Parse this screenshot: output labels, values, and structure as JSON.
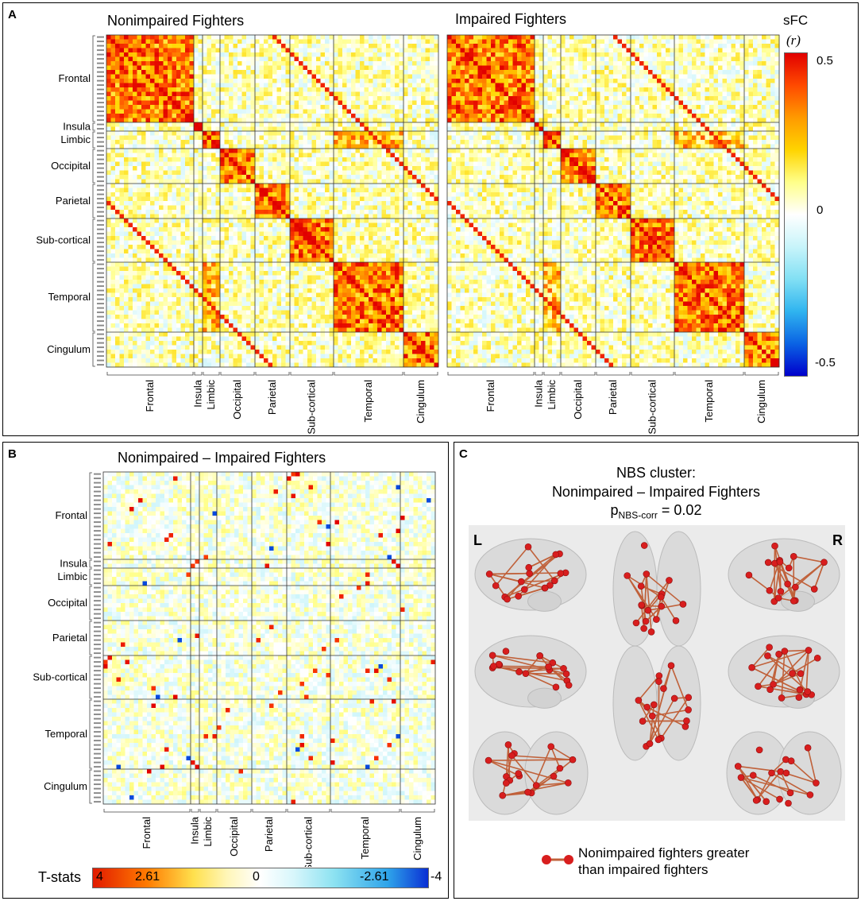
{
  "panels": {
    "a": {
      "letter": "A",
      "title_left": "Nonimpaired Fighters",
      "title_right": "Impaired Fighters"
    },
    "b": {
      "letter": "B",
      "title": "Nonimpaired – Impaired Fighters"
    },
    "c": {
      "letter": "C",
      "title_line1": "NBS cluster:",
      "title_line2": "Nonimpaired – Impaired Fighters",
      "p_label": "p",
      "p_sub": "NBS-corr",
      "p_value": "= 0.02",
      "left_label": "L",
      "right_label": "R",
      "legend_line1": "Nonimpaired fighters greater",
      "legend_line2": "than impaired fighters"
    }
  },
  "colorbar_a": {
    "title": "sFC",
    "unit": "(r)",
    "ticks": [
      "0.5",
      "0",
      "-0.5"
    ]
  },
  "colorbar_b": {
    "label": "T-stats",
    "ticks": [
      "4",
      "2.61",
      "0",
      "-2.61",
      "-4"
    ]
  },
  "regions": [
    "Frontal",
    "Insula",
    "Limbic",
    "Occipital",
    "Parietal",
    "Sub-cortical",
    "Temporal",
    "Cingulum"
  ],
  "region_sizes": [
    20,
    2,
    4,
    8,
    8,
    10,
    16,
    8
  ],
  "colors": {
    "red": "#e21b1b",
    "edge": "#c0613a",
    "node": "#d81e1e"
  },
  "chart_data": [
    {
      "type": "heatmap",
      "title": "Nonimpaired Fighters",
      "value_label": "sFC (r)",
      "range": [
        -0.5,
        0.5
      ],
      "row_groups": [
        "Frontal",
        "Insula",
        "Limbic",
        "Occipital",
        "Parietal",
        "Sub-cortical",
        "Temporal",
        "Cingulum"
      ],
      "col_groups": [
        "Frontal",
        "Insula",
        "Limbic",
        "Occipital",
        "Parietal",
        "Sub-cortical",
        "Temporal",
        "Cingulum"
      ]
    },
    {
      "type": "heatmap",
      "title": "Impaired Fighters",
      "value_label": "sFC (r)",
      "range": [
        -0.5,
        0.5
      ],
      "row_groups": [
        "Frontal",
        "Insula",
        "Limbic",
        "Occipital",
        "Parietal",
        "Sub-cortical",
        "Temporal",
        "Cingulum"
      ],
      "col_groups": [
        "Frontal",
        "Insula",
        "Limbic",
        "Occipital",
        "Parietal",
        "Sub-cortical",
        "Temporal",
        "Cingulum"
      ]
    },
    {
      "type": "heatmap",
      "title": "Nonimpaired – Impaired Fighters",
      "value_label": "T-stats",
      "range": [
        -4,
        4
      ],
      "highlight_threshold": 2.61,
      "row_groups": [
        "Frontal",
        "Insula",
        "Limbic",
        "Occipital",
        "Parietal",
        "Sub-cortical",
        "Temporal",
        "Cingulum"
      ],
      "col_groups": [
        "Frontal",
        "Insula",
        "Limbic",
        "Occipital",
        "Parietal",
        "Sub-cortical",
        "Temporal",
        "Cingulum"
      ]
    }
  ]
}
